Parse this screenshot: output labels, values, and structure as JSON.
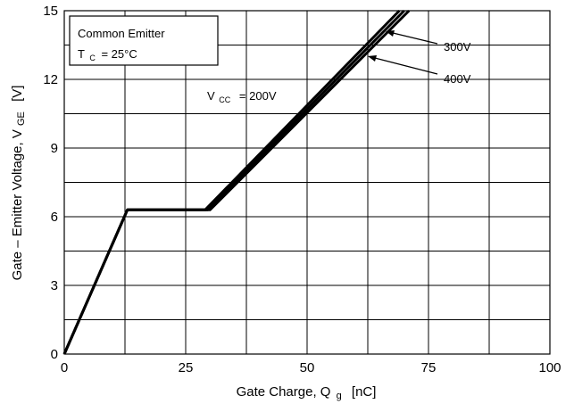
{
  "chart_data": {
    "type": "line",
    "xlabel": {
      "main": "Gate Charge, Q",
      "sub": "g",
      "unit": "[nC]"
    },
    "ylabel": {
      "main": "Gate – Emitter Voltage, V",
      "sub": "GE",
      "unit": "[V]"
    },
    "xlim": [
      0,
      100
    ],
    "ylim": [
      0,
      15
    ],
    "xticks": [
      0,
      25,
      50,
      75,
      100
    ],
    "yticks": [
      0,
      3,
      6,
      9,
      12,
      15
    ],
    "grid": true,
    "conditions": {
      "line1": "Common Emitter",
      "line2_main": "T",
      "line2_sub": "C",
      "line2_rest": "= 25°C"
    },
    "annotations": [
      {
        "main": "V",
        "sub": "CC",
        "rest": "= 200V"
      },
      {
        "text": "300V"
      },
      {
        "text": "400V"
      }
    ],
    "series": [
      {
        "x": [
          0,
          13,
          29,
          69
        ],
        "y": [
          0,
          6.3,
          6.3,
          15
        ]
      },
      {
        "x": [
          0,
          13,
          29.5,
          70
        ],
        "y": [
          0,
          6.3,
          6.3,
          15
        ]
      },
      {
        "x": [
          0,
          13,
          30,
          71
        ],
        "y": [
          0,
          6.3,
          6.3,
          15
        ]
      }
    ],
    "line_color": "#000000",
    "grid_color": "#000000"
  }
}
